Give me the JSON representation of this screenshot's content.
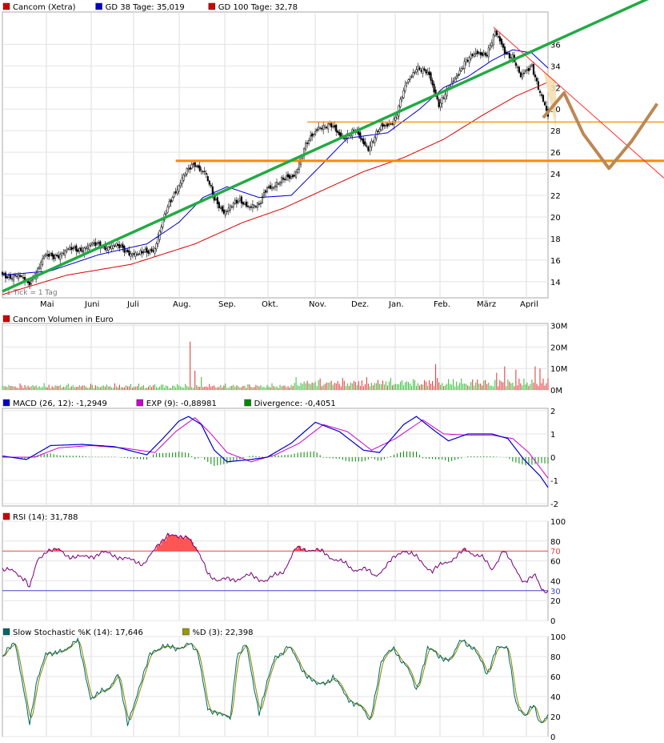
{
  "chart_data": [
    {
      "type": "candlestick",
      "panel": "price",
      "legend": [
        {
          "label": "Cancom (Xetra)",
          "color": "#d00000"
        },
        {
          "label": "GD 38 Tage: 35,019",
          "color": "#0000cc"
        },
        {
          "label": "GD 100 Tage: 32,78",
          "color": "#d00000"
        }
      ],
      "note": "1 Tick = 1 Tag",
      "months": [
        "Mai",
        "Juni",
        "Juli",
        "Aug.",
        "Sep.",
        "Okt.",
        "Nov.",
        "Dez.",
        "Jan.",
        "Feb.",
        "März",
        "April"
      ],
      "yticks": [
        14,
        16,
        18,
        20,
        22,
        24,
        26,
        28,
        30,
        32,
        34,
        36
      ],
      "ytick_labels": [
        "14",
        "16",
        "18",
        "20",
        "22",
        "24",
        "26",
        "28",
        "30",
        "32",
        "34",
        "36"
      ],
      "close_keypoints": [
        [
          0,
          14.6
        ],
        [
          8,
          14.6
        ],
        [
          16,
          13.8
        ],
        [
          22,
          15.2
        ],
        [
          26,
          16.2
        ],
        [
          45,
          17.0
        ],
        [
          60,
          17.4
        ],
        [
          75,
          17.1
        ],
        [
          85,
          16.4
        ],
        [
          95,
          17.2
        ],
        [
          100,
          19.5
        ],
        [
          106,
          22.0
        ],
        [
          113,
          23.8
        ],
        [
          120,
          24.9
        ],
        [
          126,
          24.3
        ],
        [
          132,
          21.5
        ],
        [
          138,
          20.6
        ],
        [
          148,
          21.4
        ],
        [
          160,
          20.9
        ],
        [
          165,
          22.8
        ],
        [
          175,
          23.3
        ],
        [
          182,
          24.0
        ],
        [
          188,
          26.2
        ],
        [
          197,
          28.5
        ],
        [
          205,
          28.3
        ],
        [
          212,
          27.5
        ],
        [
          220,
          27.8
        ],
        [
          228,
          26.5
        ],
        [
          236,
          28.2
        ],
        [
          245,
          29.2
        ],
        [
          252,
          32.4
        ],
        [
          258,
          34.0
        ],
        [
          266,
          33.0
        ],
        [
          272,
          30.6
        ],
        [
          280,
          32.2
        ],
        [
          288,
          34.5
        ],
        [
          297,
          35.1
        ],
        [
          302,
          35.3
        ],
        [
          307,
          37.0
        ],
        [
          313,
          35.3
        ],
        [
          318,
          35.0
        ],
        [
          323,
          32.8
        ],
        [
          330,
          34.2
        ],
        [
          335,
          31.5
        ],
        [
          340,
          29.2
        ]
      ],
      "gd38_keypoints": [
        [
          0,
          14.6
        ],
        [
          30,
          15.0
        ],
        [
          60,
          16.5
        ],
        [
          90,
          17.5
        ],
        [
          110,
          19.5
        ],
        [
          125,
          21.8
        ],
        [
          140,
          22.8
        ],
        [
          160,
          21.8
        ],
        [
          180,
          22.0
        ],
        [
          200,
          25.0
        ],
        [
          215,
          27.3
        ],
        [
          240,
          27.8
        ],
        [
          260,
          30.0
        ],
        [
          275,
          32.0
        ],
        [
          290,
          33.0
        ],
        [
          305,
          34.5
        ],
        [
          318,
          35.5
        ],
        [
          330,
          35.2
        ],
        [
          340,
          33.8
        ]
      ],
      "gd100_keypoints": [
        [
          0,
          12.8
        ],
        [
          40,
          14.6
        ],
        [
          80,
          15.6
        ],
        [
          120,
          17.5
        ],
        [
          150,
          19.5
        ],
        [
          175,
          20.8
        ],
        [
          200,
          22.5
        ],
        [
          225,
          24.2
        ],
        [
          250,
          25.5
        ],
        [
          275,
          27.2
        ],
        [
          300,
          29.5
        ],
        [
          320,
          31.2
        ],
        [
          340,
          32.5
        ]
      ],
      "ylim": [
        12.5,
        39.0
      ],
      "drawings": {
        "uptrend_line": {
          "from": [
            0,
            13.1
          ],
          "to": [
            415,
            40.9
          ],
          "color": "#22aa44"
        },
        "resistance_line_1": {
          "from": [
            190,
            28.8
          ],
          "to": [
            415,
            28.8
          ],
          "color": "#ff8800"
        },
        "support_line": {
          "from": [
            108,
            25.2
          ],
          "to": [
            415,
            25.2
          ],
          "color": "#ff8800"
        },
        "downtrend_line": {
          "from": [
            306,
            37.6
          ],
          "to": [
            415,
            23.6
          ],
          "color": "#ff3333"
        },
        "forecast_zigzag": {
          "points": [
            [
              337,
              29.2
            ],
            [
              350,
              31.5
            ],
            [
              362,
              27.7
            ],
            [
              378,
              24.5
            ],
            [
              392,
              27.0
            ],
            [
              408,
              30.5
            ]
          ],
          "color": "#bb8855"
        },
        "forecast_triangle": {
          "points": [
            [
              337,
              33.6
            ],
            [
              345,
              32.6
            ],
            [
              345,
              28.2
            ]
          ],
          "fill": "#f5deb0"
        }
      }
    },
    {
      "type": "bar",
      "panel": "volume",
      "legend": [
        {
          "label": "Cancom Volumen in Euro",
          "color": "#d00000"
        }
      ],
      "yticks": [
        0,
        10,
        20,
        30
      ],
      "ytick_labels": [
        "0M",
        "10M",
        "20M",
        "30M"
      ],
      "ylim": [
        0,
        31
      ],
      "typical_volume_M": 3,
      "spikes": [
        [
          117,
          22.5
        ],
        [
          120,
          9.0
        ],
        [
          124,
          6.0
        ],
        [
          270,
          12.0
        ],
        [
          308,
          8.0
        ],
        [
          313,
          11.0
        ],
        [
          320,
          9.5
        ],
        [
          332,
          11.0
        ],
        [
          335,
          10.0
        ]
      ]
    },
    {
      "type": "line",
      "panel": "macd",
      "legend": [
        {
          "label": "MACD (26, 12): -1,2949",
          "color": "#0000cc"
        },
        {
          "label": "EXP (9): -0,88981",
          "color": "#cc00cc"
        },
        {
          "label": "Divergence: -0,4051",
          "color": "#008800"
        }
      ],
      "yticks": [
        -2,
        -1,
        0,
        1,
        2
      ],
      "ytick_labels": [
        "-2",
        "-1",
        "0",
        "1",
        "2"
      ],
      "ylim": [
        -2.1,
        2.1
      ],
      "macd_keypoints": [
        [
          0,
          0.05
        ],
        [
          15,
          -0.1
        ],
        [
          30,
          0.5
        ],
        [
          50,
          0.55
        ],
        [
          70,
          0.45
        ],
        [
          90,
          0.1
        ],
        [
          100,
          0.8
        ],
        [
          110,
          1.55
        ],
        [
          116,
          1.75
        ],
        [
          124,
          1.4
        ],
        [
          132,
          0.3
        ],
        [
          140,
          -0.2
        ],
        [
          155,
          -0.1
        ],
        [
          165,
          0.0
        ],
        [
          180,
          0.6
        ],
        [
          195,
          1.5
        ],
        [
          210,
          1.1
        ],
        [
          225,
          0.3
        ],
        [
          235,
          0.2
        ],
        [
          250,
          1.4
        ],
        [
          258,
          1.75
        ],
        [
          270,
          1.1
        ],
        [
          278,
          0.7
        ],
        [
          290,
          1.0
        ],
        [
          305,
          1.0
        ],
        [
          315,
          0.8
        ],
        [
          325,
          -0.1
        ],
        [
          335,
          -0.8
        ],
        [
          340,
          -1.3
        ]
      ],
      "exp_keypoints": [
        [
          0,
          0.0
        ],
        [
          20,
          0.0
        ],
        [
          35,
          0.4
        ],
        [
          55,
          0.5
        ],
        [
          75,
          0.4
        ],
        [
          95,
          0.2
        ],
        [
          108,
          1.1
        ],
        [
          120,
          1.7
        ],
        [
          130,
          1.0
        ],
        [
          140,
          0.2
        ],
        [
          155,
          -0.2
        ],
        [
          170,
          0.1
        ],
        [
          185,
          0.6
        ],
        [
          200,
          1.4
        ],
        [
          215,
          1.1
        ],
        [
          230,
          0.3
        ],
        [
          245,
          0.8
        ],
        [
          262,
          1.6
        ],
        [
          275,
          1.0
        ],
        [
          290,
          0.95
        ],
        [
          305,
          0.95
        ],
        [
          318,
          0.8
        ],
        [
          328,
          0.2
        ],
        [
          340,
          -0.9
        ]
      ]
    },
    {
      "type": "line",
      "panel": "rsi",
      "legend": [
        {
          "label": "RSI (14): 31,788",
          "color": "#d00000"
        }
      ],
      "yticks": [
        0,
        20,
        40,
        60,
        80,
        100
      ],
      "ytick_labels": [
        "0",
        "20",
        "40",
        "60",
        "80",
        "100"
      ],
      "level_labels": [
        "70",
        "30"
      ],
      "ylim": [
        0,
        100
      ],
      "upper": 70,
      "lower": 30,
      "rsi_keypoints": [
        [
          0,
          52
        ],
        [
          8,
          48
        ],
        [
          14,
          43
        ],
        [
          17,
          33
        ],
        [
          22,
          60
        ],
        [
          28,
          72
        ],
        [
          35,
          70
        ],
        [
          40,
          66
        ],
        [
          50,
          63
        ],
        [
          62,
          68
        ],
        [
          72,
          65
        ],
        [
          80,
          60
        ],
        [
          88,
          58
        ],
        [
          94,
          68
        ],
        [
          98,
          78
        ],
        [
          103,
          88
        ],
        [
          110,
          82
        ],
        [
          116,
          86
        ],
        [
          120,
          74
        ],
        [
          128,
          48
        ],
        [
          135,
          40
        ],
        [
          145,
          42
        ],
        [
          155,
          45
        ],
        [
          165,
          40
        ],
        [
          175,
          50
        ],
        [
          183,
          72
        ],
        [
          192,
          72
        ],
        [
          200,
          68
        ],
        [
          210,
          60
        ],
        [
          218,
          52
        ],
        [
          225,
          52
        ],
        [
          232,
          45
        ],
        [
          240,
          56
        ],
        [
          250,
          72
        ],
        [
          258,
          63
        ],
        [
          268,
          50
        ],
        [
          278,
          60
        ],
        [
          288,
          70
        ],
        [
          298,
          66
        ],
        [
          305,
          50
        ],
        [
          312,
          72
        ],
        [
          318,
          55
        ],
        [
          325,
          40
        ],
        [
          332,
          44
        ],
        [
          336,
          32
        ],
        [
          340,
          30
        ]
      ]
    },
    {
      "type": "line",
      "panel": "stochastic",
      "legend": [
        {
          "label": "Slow Stochastic %K (14): 17,646",
          "color": "#006666"
        },
        {
          "label": "%D (3): 22,398",
          "color": "#999900"
        }
      ],
      "yticks": [
        0,
        20,
        40,
        60,
        80,
        100
      ],
      "ytick_labels": [
        "0",
        "20",
        "40",
        "60",
        "80",
        "100"
      ],
      "ylim": [
        0,
        100
      ],
      "k_keypoints": [
        [
          0,
          78
        ],
        [
          8,
          95
        ],
        [
          12,
          60
        ],
        [
          17,
          10
        ],
        [
          22,
          60
        ],
        [
          27,
          85
        ],
        [
          32,
          80
        ],
        [
          40,
          90
        ],
        [
          47,
          95
        ],
        [
          55,
          40
        ],
        [
          65,
          45
        ],
        [
          72,
          65
        ],
        [
          78,
          10
        ],
        [
          85,
          50
        ],
        [
          92,
          80
        ],
        [
          100,
          93
        ],
        [
          108,
          85
        ],
        [
          116,
          96
        ],
        [
          122,
          80
        ],
        [
          128,
          30
        ],
        [
          136,
          20
        ],
        [
          142,
          20
        ],
        [
          146,
          80
        ],
        [
          152,
          90
        ],
        [
          160,
          25
        ],
        [
          170,
          80
        ],
        [
          178,
          90
        ],
        [
          186,
          70
        ],
        [
          196,
          50
        ],
        [
          206,
          60
        ],
        [
          214,
          40
        ],
        [
          222,
          32
        ],
        [
          229,
          15
        ],
        [
          236,
          75
        ],
        [
          244,
          88
        ],
        [
          252,
          70
        ],
        [
          258,
          45
        ],
        [
          265,
          90
        ],
        [
          272,
          78
        ],
        [
          280,
          80
        ],
        [
          286,
          95
        ],
        [
          294,
          90
        ],
        [
          302,
          60
        ],
        [
          308,
          92
        ],
        [
          315,
          85
        ],
        [
          320,
          35
        ],
        [
          326,
          20
        ],
        [
          331,
          30
        ],
        [
          335,
          15
        ],
        [
          340,
          22
        ]
      ]
    }
  ]
}
